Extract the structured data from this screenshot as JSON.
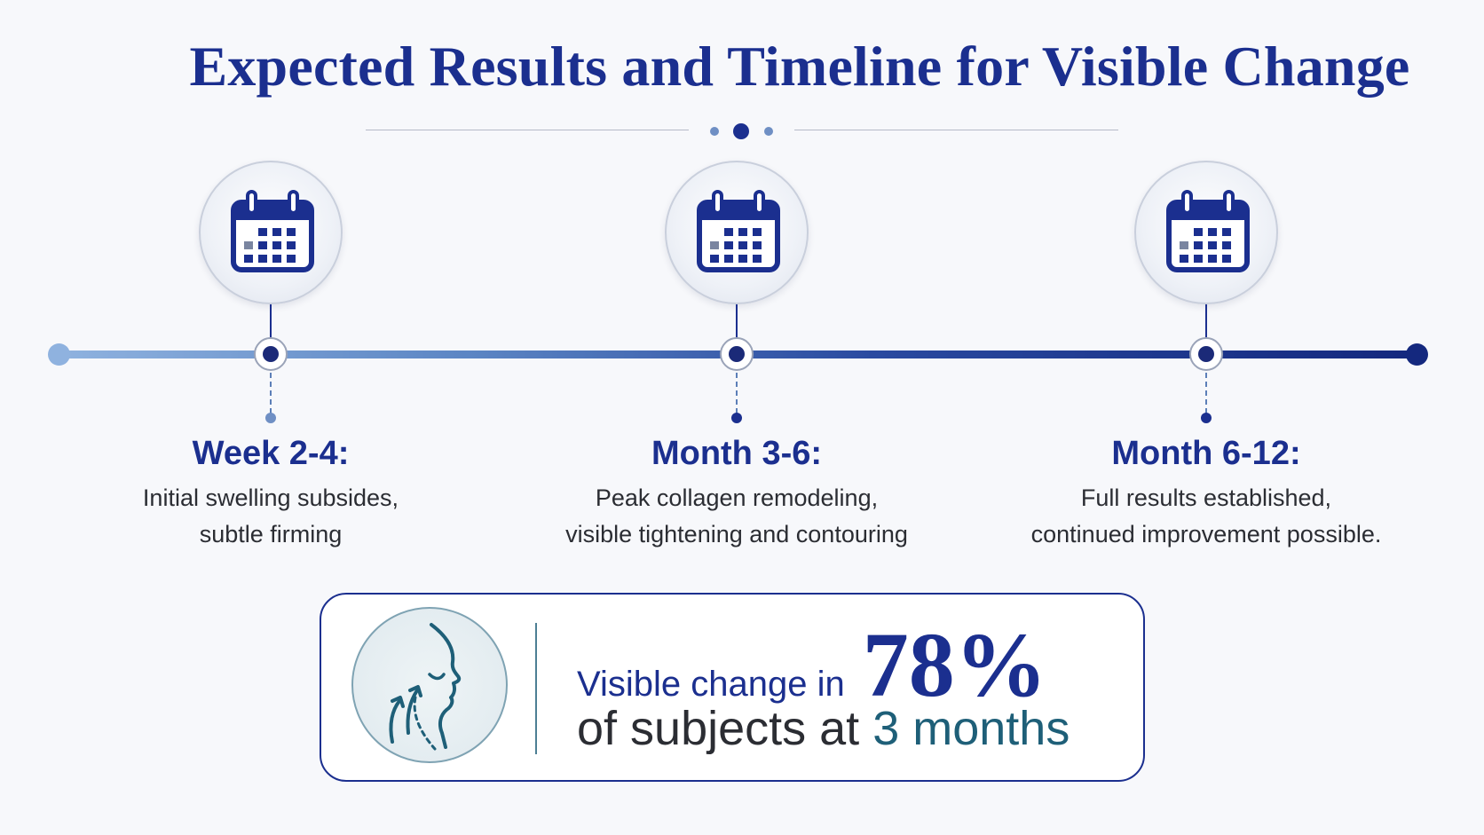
{
  "title": "Expected Results and Timeline for Visible Change",
  "colors": {
    "primary": "#1b2f8f",
    "accent_teal": "#1e5f78",
    "timeline_start": "#8fb2df",
    "timeline_end": "#14287e"
  },
  "stages": [
    {
      "icon": "calendar-icon",
      "title": "Week 2-4:",
      "line1": "Initial swelling subsides,",
      "line2": "subtle firming"
    },
    {
      "icon": "calendar-icon",
      "title": "Month 3-6:",
      "line1": "Peak collagen remodeling,",
      "line2": "visible tightening and contouring"
    },
    {
      "icon": "calendar-icon",
      "title": "Month 6-12:",
      "line1": "Full results established,",
      "line2": "continued improvement possible."
    }
  ],
  "stat": {
    "icon": "face-lift-icon",
    "prefix": "Visible change in",
    "value": "78%",
    "line2_prefix": "of subjects at",
    "line2_highlight": "3 months"
  }
}
